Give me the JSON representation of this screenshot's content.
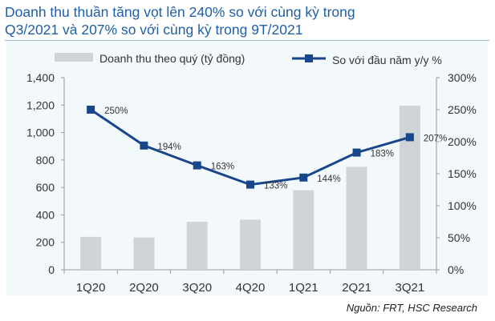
{
  "title_lines": [
    "Doanh thu thuần tăng vọt lên 240% so với cùng kỳ trong",
    "Q3/2021 và 207% so với cùng kỳ trong 9T/2021"
  ],
  "source": "Nguồn: FRT, HSC Research",
  "chart_data": {
    "type": "bar+line",
    "categories": [
      "1Q20",
      "2Q20",
      "3Q20",
      "4Q20",
      "1Q21",
      "2Q21",
      "3Q21"
    ],
    "series": [
      {
        "name": "Doanh thu theo quý (tỷ đồng)",
        "type": "bar",
        "axis": "left",
        "color": "#d0d3d8",
        "values": [
          240,
          235,
          350,
          365,
          580,
          750,
          1195
        ]
      },
      {
        "name": "So với đầu năm y/y %",
        "type": "line",
        "axis": "right",
        "color": "#17468a",
        "values": [
          250,
          194,
          163,
          133,
          144,
          183,
          207
        ],
        "labels": [
          "250%",
          "194%",
          "163%",
          "133%",
          "144%",
          "183%",
          "207%"
        ]
      }
    ],
    "left_axis": {
      "range": [
        0,
        1400
      ],
      "ticks": [
        "0",
        "200",
        "400",
        "600",
        "800",
        "1,000",
        "1,200",
        "1,400"
      ]
    },
    "right_axis": {
      "range": [
        0,
        300
      ],
      "ticks": [
        "0%",
        "50%",
        "100%",
        "150%",
        "200%",
        "250%",
        "300%"
      ]
    },
    "legend": "top",
    "grid": false
  }
}
